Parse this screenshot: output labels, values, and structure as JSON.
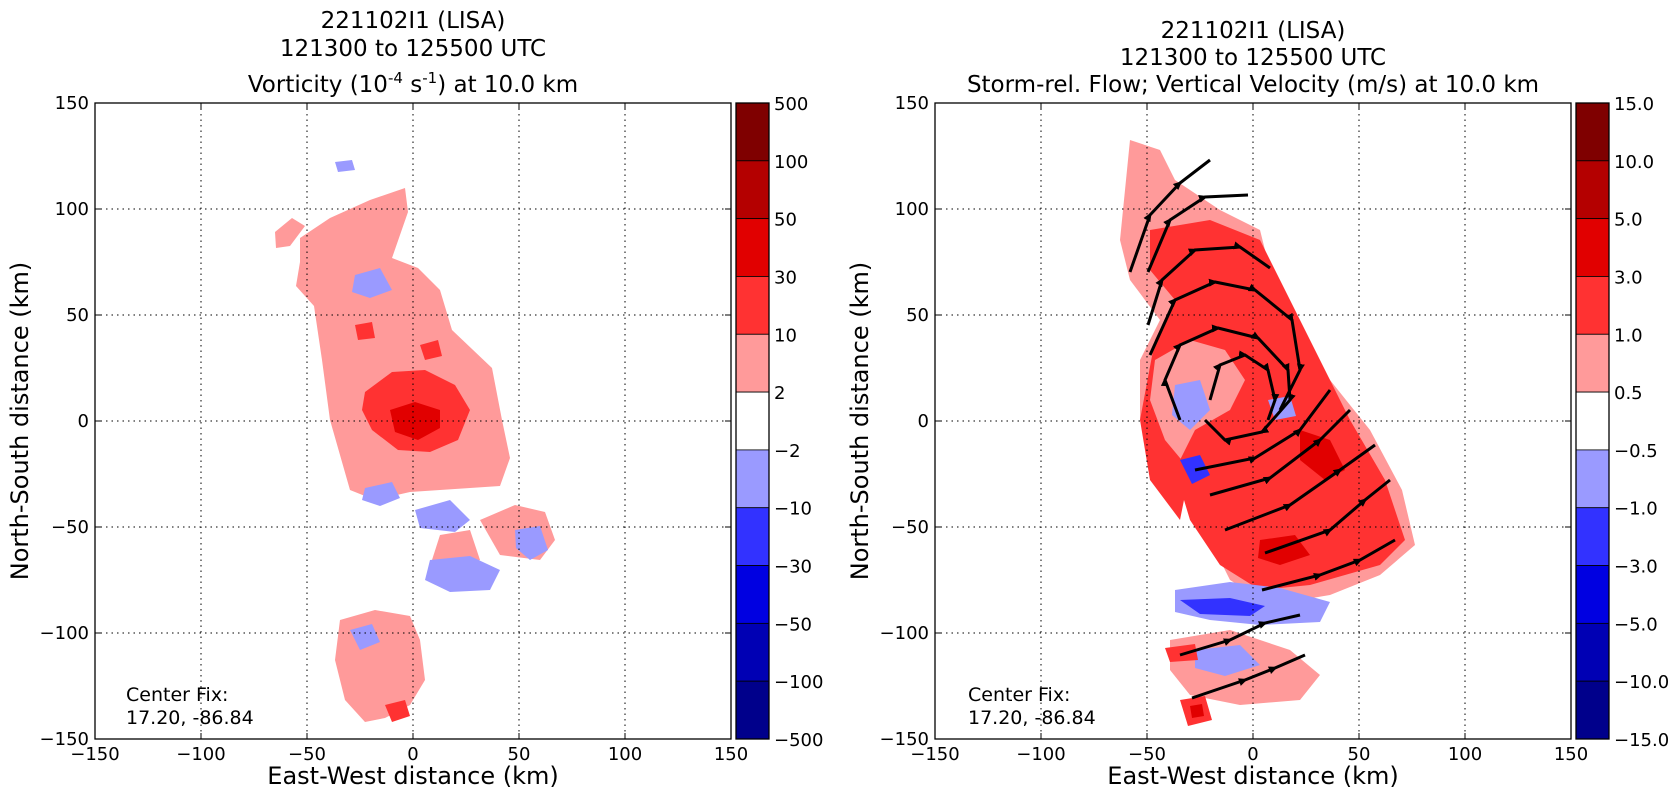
{
  "colors": {
    "neg_500": "#00008b",
    "neg_100": "#0000b4",
    "neg_50": "#0000e1",
    "neg_30": "#3232ff",
    "neg_10": "#9a9aff",
    "white": "#ffffff",
    "pos_2": "#ff9a9a",
    "pos_10": "#ff3232",
    "pos_30": "#e10000",
    "pos_50": "#b40000",
    "pos_100": "#7f0000"
  },
  "chart_data": [
    {
      "type": "heatmap",
      "title_line1": "221102I1 (LISA)",
      "title_line2": "121300 to 125500 UTC",
      "title_line3_pre": "Vorticity (10",
      "title_line3_sup1": "-4",
      "title_line3_mid": " s",
      "title_line3_sup2": "-1",
      "title_line3_post": ") at 10.0 km",
      "xlabel": "East-West distance (km)",
      "ylabel": "North-South distance (km)",
      "xlim": [
        -150,
        150
      ],
      "ylim": [
        -150,
        150
      ],
      "xticks": [
        "−150",
        "−100",
        "−50",
        "0",
        "50",
        "100",
        "150"
      ],
      "yticks": [
        "150",
        "100",
        "50",
        "0",
        "−50",
        "−100",
        "−150"
      ],
      "grid": true,
      "annotation_line1": "Center Fix:",
      "annotation_line2": "17.20, -86.84",
      "colorbar_levels": [
        "500",
        "100",
        "50",
        "30",
        "10",
        "2",
        "−2",
        "−10",
        "−30",
        "−50",
        "−100",
        "−500"
      ]
    },
    {
      "type": "heatmap",
      "title_line1": "221102I1 (LISA)",
      "title_line2": "121300 to 125500 UTC",
      "title_line3": "Storm-rel. Flow; Vertical Velocity (m/s) at 10.0 km",
      "xlabel": "East-West distance (km)",
      "ylabel": "North-South distance (km)",
      "xlim": [
        -150,
        150
      ],
      "ylim": [
        -150,
        150
      ],
      "xticks": [
        "−150",
        "−100",
        "−50",
        "0",
        "50",
        "100",
        "150"
      ],
      "yticks": [
        "150",
        "100",
        "50",
        "0",
        "−50",
        "−100",
        "−150"
      ],
      "grid": true,
      "annotation_line1": "Center Fix:",
      "annotation_line2": "17.20, -86.84",
      "colorbar_levels": [
        "15.0",
        "10.0",
        "5.0",
        "3.0",
        "1.0",
        "0.5",
        "−0.5",
        "−1.0",
        "−3.0",
        "−5.0",
        "−10.0",
        "−15.0"
      ]
    }
  ]
}
